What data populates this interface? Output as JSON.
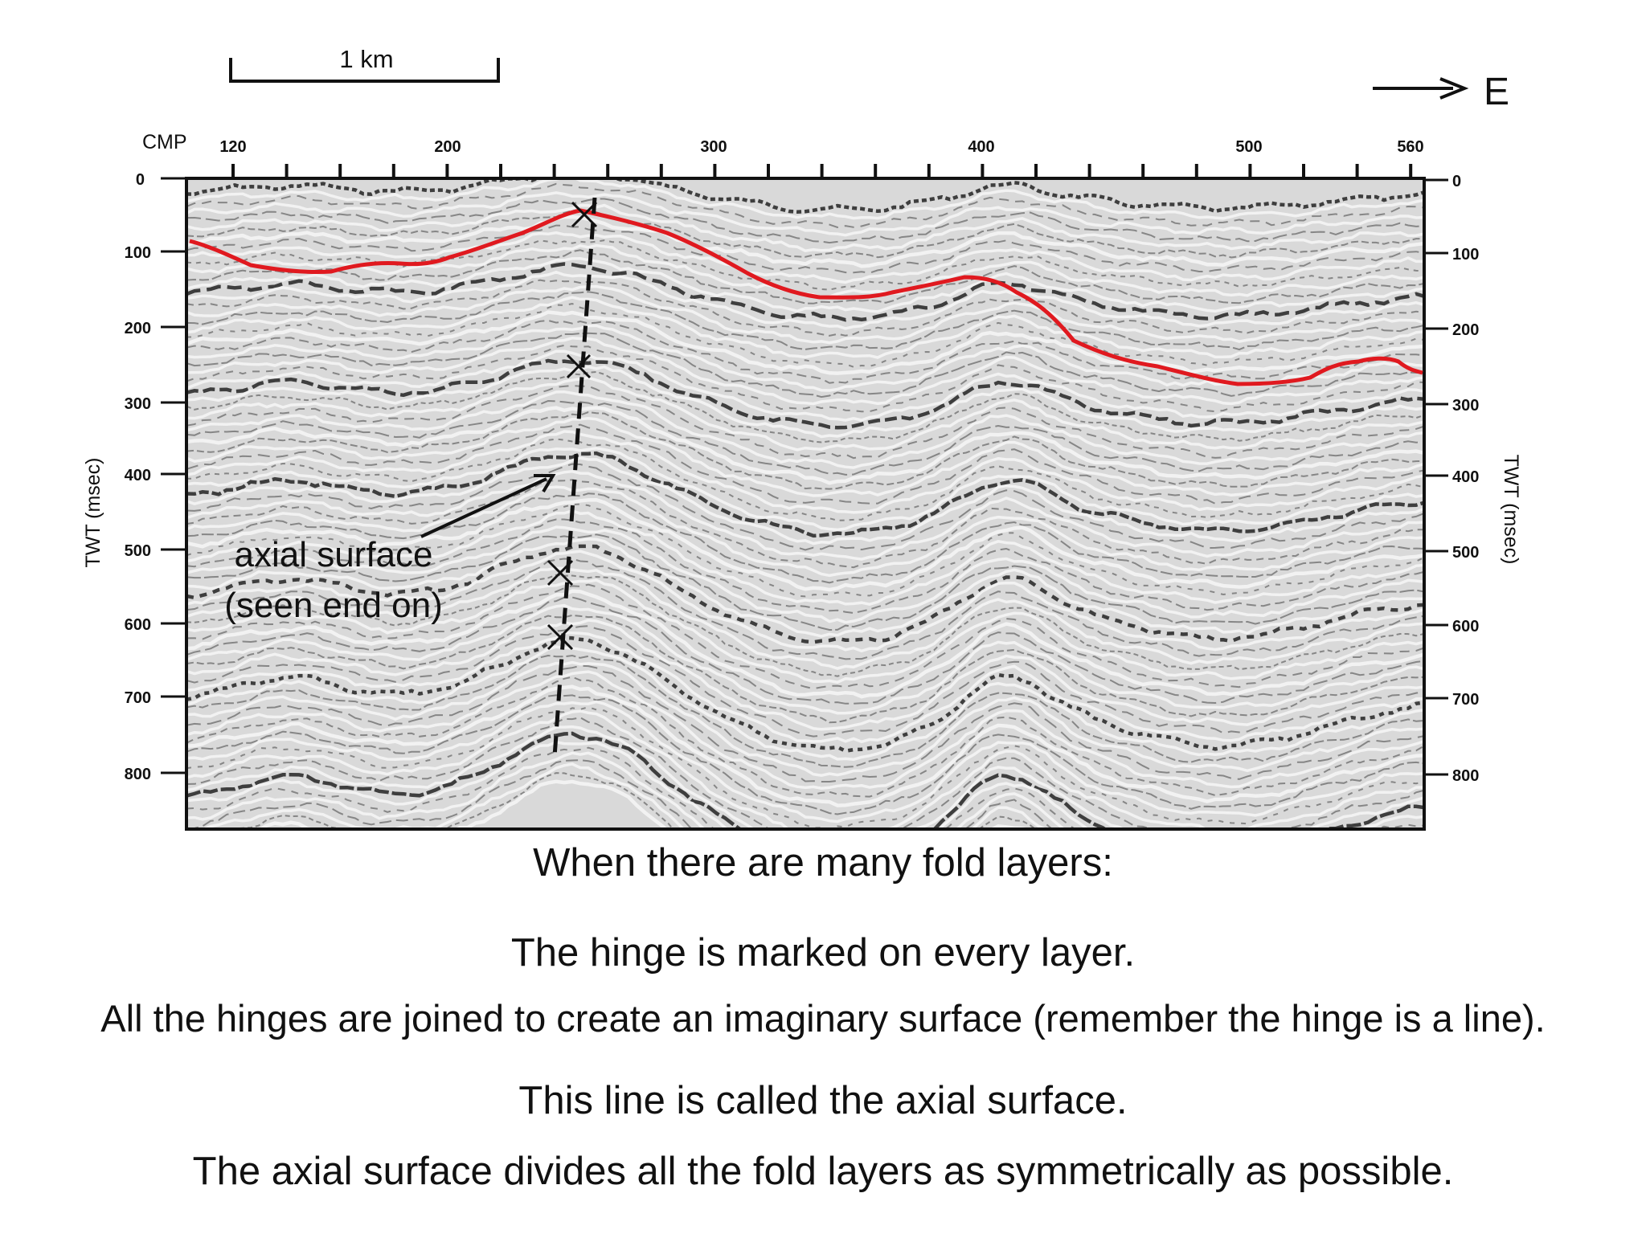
{
  "scale_bar": {
    "label": "1 km"
  },
  "direction": {
    "label": "E"
  },
  "top_axis": {
    "title": "CMP",
    "ticks": [
      "120",
      "200",
      "300",
      "400",
      "500",
      "560"
    ]
  },
  "left_axis": {
    "title": "TWT (msec)",
    "ticks": [
      "0",
      "100",
      "200",
      "300",
      "400",
      "500",
      "600",
      "700",
      "800"
    ]
  },
  "right_axis": {
    "title": "TWT (msec)",
    "ticks": [
      "0",
      "100",
      "200",
      "300",
      "400",
      "500",
      "600",
      "700",
      "800"
    ]
  },
  "annotation": {
    "line1": "axial surface",
    "line2": "(seen end on)"
  },
  "colors": {
    "horizon_line": "#e0191f",
    "axial_line": "#111111",
    "reflector": "#222222"
  },
  "captions": {
    "heading": "When there are many fold layers:",
    "line1": "The hinge is marked on every layer.",
    "line2": "All the hinges are joined to create an imaginary surface (remember the hinge is a line).",
    "line3": "This line is called the axial surface.",
    "line4": "The axial surface divides all the fold layers as symmetrically as possible."
  }
}
